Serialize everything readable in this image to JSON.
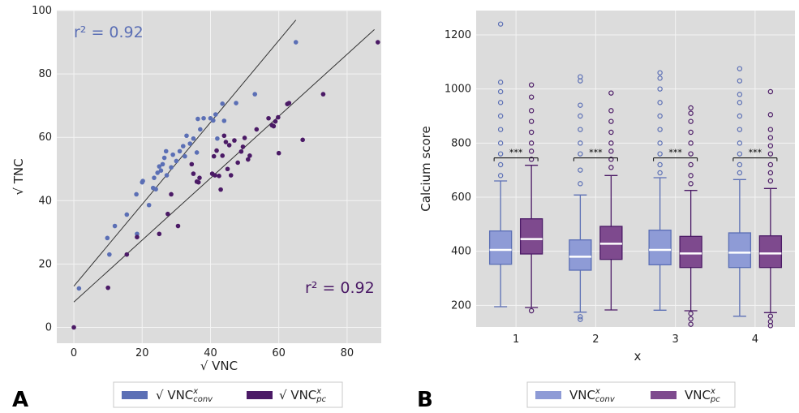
{
  "colors": {
    "conv": "#5b6fb5",
    "conv_box": "#8e9bd6",
    "pc": "#4b1a66",
    "pc_box": "#7e4a8e",
    "bg": "#dcdcdc"
  },
  "panels": {
    "a": "A",
    "b": "B"
  },
  "chart_data": [
    {
      "type": "scatter",
      "xlabel": "√ VNC",
      "ylabel": "√ TNC",
      "xlim": [
        -5,
        90
      ],
      "ylim": [
        -5,
        100
      ],
      "xticks": [
        0,
        20,
        40,
        60,
        80
      ],
      "yticks": [
        0,
        20,
        40,
        60,
        80,
        100
      ],
      "grid": true,
      "annotations": [
        "r² = 0.92",
        "r² = 0.92"
      ],
      "legend": {
        "placement": "below",
        "entries": [
          {
            "prefix": "√ VNC",
            "sup": "x",
            "sub": "conv"
          },
          {
            "prefix": "√ VNC",
            "sup": "x",
            "sub": "pc"
          }
        ]
      },
      "series": [
        {
          "key": "conv",
          "points": [
            [
              1.5,
              12.3
            ],
            [
              9.8,
              28.2
            ],
            [
              10.4,
              23
            ],
            [
              12,
              32
            ],
            [
              15.5,
              35.6
            ],
            [
              18.3,
              42
            ],
            [
              18.5,
              29.5
            ],
            [
              20,
              45.8
            ],
            [
              20.2,
              46.2
            ],
            [
              22,
              38.6
            ],
            [
              23.2,
              44
            ],
            [
              23.5,
              47.2
            ],
            [
              24,
              43.6
            ],
            [
              24.5,
              48.8
            ],
            [
              25,
              50.8
            ],
            [
              25.5,
              49.5
            ],
            [
              26,
              51.5
            ],
            [
              26.5,
              53.5
            ],
            [
              27,
              55.6
            ],
            [
              27.2,
              48
            ],
            [
              28.5,
              50.5
            ],
            [
              29,
              54.5
            ],
            [
              30,
              52.5
            ],
            [
              31,
              55.6
            ],
            [
              32,
              57.2
            ],
            [
              32.5,
              54
            ],
            [
              33,
              60.5
            ],
            [
              34,
              58
            ],
            [
              35,
              59.6
            ],
            [
              36,
              55.2
            ],
            [
              36.3,
              65.8
            ],
            [
              37,
              62.5
            ],
            [
              38,
              66
            ],
            [
              40,
              66
            ],
            [
              40.8,
              65.3
            ],
            [
              41.5,
              67.2
            ],
            [
              42,
              59.6
            ],
            [
              43.5,
              70.6
            ],
            [
              44,
              65.2
            ],
            [
              47.5,
              70.8
            ],
            [
              53,
              73.6
            ],
            [
              65,
              90
            ]
          ],
          "trend": [
            [
              0,
              13
            ],
            [
              65,
              97
            ]
          ]
        },
        {
          "key": "pc",
          "points": [
            [
              0,
              0
            ],
            [
              10,
              12.5
            ],
            [
              15.5,
              23
            ],
            [
              18.5,
              28.5
            ],
            [
              25,
              29.5
            ],
            [
              27.5,
              35.8
            ],
            [
              28.5,
              42
            ],
            [
              30.5,
              32
            ],
            [
              34.5,
              51.5
            ],
            [
              35,
              48.5
            ],
            [
              36,
              46
            ],
            [
              36.5,
              45.8
            ],
            [
              36.8,
              47.2
            ],
            [
              40.5,
              48.5
            ],
            [
              41,
              54
            ],
            [
              41.3,
              48
            ],
            [
              41.8,
              55.8
            ],
            [
              42.5,
              47.8
            ],
            [
              43,
              43.5
            ],
            [
              43.5,
              54.2
            ],
            [
              44,
              60.5
            ],
            [
              44.5,
              58.5
            ],
            [
              45,
              50
            ],
            [
              45.5,
              57.5
            ],
            [
              46,
              48
            ],
            [
              47,
              59
            ],
            [
              48,
              52
            ],
            [
              49,
              55.5
            ],
            [
              49.5,
              57
            ],
            [
              50,
              59.8
            ],
            [
              51,
              53
            ],
            [
              51.5,
              54.2
            ],
            [
              53.5,
              62.5
            ],
            [
              57,
              66
            ],
            [
              58,
              63.8
            ],
            [
              58.5,
              63.5
            ],
            [
              59,
              65
            ],
            [
              59.8,
              66.3
            ],
            [
              60,
              55
            ],
            [
              62.5,
              70.5
            ],
            [
              63,
              70.8
            ],
            [
              67,
              59.2
            ],
            [
              73,
              73.6
            ],
            [
              89,
              90
            ]
          ],
          "trend": [
            [
              0,
              8
            ],
            [
              88,
              94
            ]
          ]
        }
      ]
    },
    {
      "type": "box",
      "xlabel": "x",
      "ylabel": "Calcium score",
      "categories": [
        "1",
        "2",
        "3",
        "4"
      ],
      "ylim": [
        120,
        1290
      ],
      "yticks": [
        200,
        400,
        600,
        800,
        1000,
        1200
      ],
      "grid": true,
      "significance": [
        "***",
        "***",
        "***",
        "***"
      ],
      "legend": {
        "placement": "below",
        "entries": [
          {
            "prefix": "VNC",
            "sup": "x",
            "sub": "conv"
          },
          {
            "prefix": "VNC",
            "sup": "x",
            "sub": "pc"
          }
        ]
      },
      "series": [
        {
          "key": "conv",
          "boxes": [
            {
              "q1": 352,
              "median": 405,
              "q3": 475,
              "whislo": 195,
              "whishi": 660,
              "fliers": [
                1240,
                1025,
                990,
                950,
                900,
                850,
                800,
                760,
                720,
                680
              ]
            },
            {
              "q1": 330,
              "median": 380,
              "q3": 442,
              "whislo": 175,
              "whishi": 608,
              "fliers": [
                1045,
                1030,
                940,
                900,
                850,
                800,
                760,
                700,
                650,
                148,
                158
              ]
            },
            {
              "q1": 350,
              "median": 405,
              "q3": 478,
              "whislo": 182,
              "whishi": 672,
              "fliers": [
                1060,
                1040,
                1000,
                950,
                900,
                850,
                800,
                760,
                720,
                690
              ]
            },
            {
              "q1": 340,
              "median": 395,
              "q3": 468,
              "whislo": 160,
              "whishi": 665,
              "fliers": [
                1075,
                1030,
                980,
                950,
                900,
                850,
                800,
                760,
                720,
                690
              ]
            }
          ]
        },
        {
          "key": "pc",
          "boxes": [
            {
              "q1": 390,
              "median": 445,
              "q3": 520,
              "whislo": 192,
              "whishi": 718,
              "fliers": [
                1015,
                970,
                920,
                880,
                840,
                800,
                770,
                740,
                180
              ]
            },
            {
              "q1": 370,
              "median": 428,
              "q3": 492,
              "whislo": 183,
              "whishi": 680,
              "fliers": [
                985,
                920,
                880,
                840,
                800,
                770,
                740,
                710
              ]
            },
            {
              "q1": 340,
              "median": 392,
              "q3": 455,
              "whislo": 180,
              "whishi": 625,
              "fliers": [
                930,
                910,
                880,
                840,
                800,
                760,
                720,
                680,
                650,
                170,
                150,
                130
              ]
            },
            {
              "q1": 340,
              "median": 392,
              "q3": 457,
              "whislo": 173,
              "whishi": 632,
              "fliers": [
                990,
                905,
                850,
                820,
                790,
                760,
                720,
                690,
                660,
                160,
                140,
                125
              ]
            }
          ]
        }
      ]
    }
  ]
}
